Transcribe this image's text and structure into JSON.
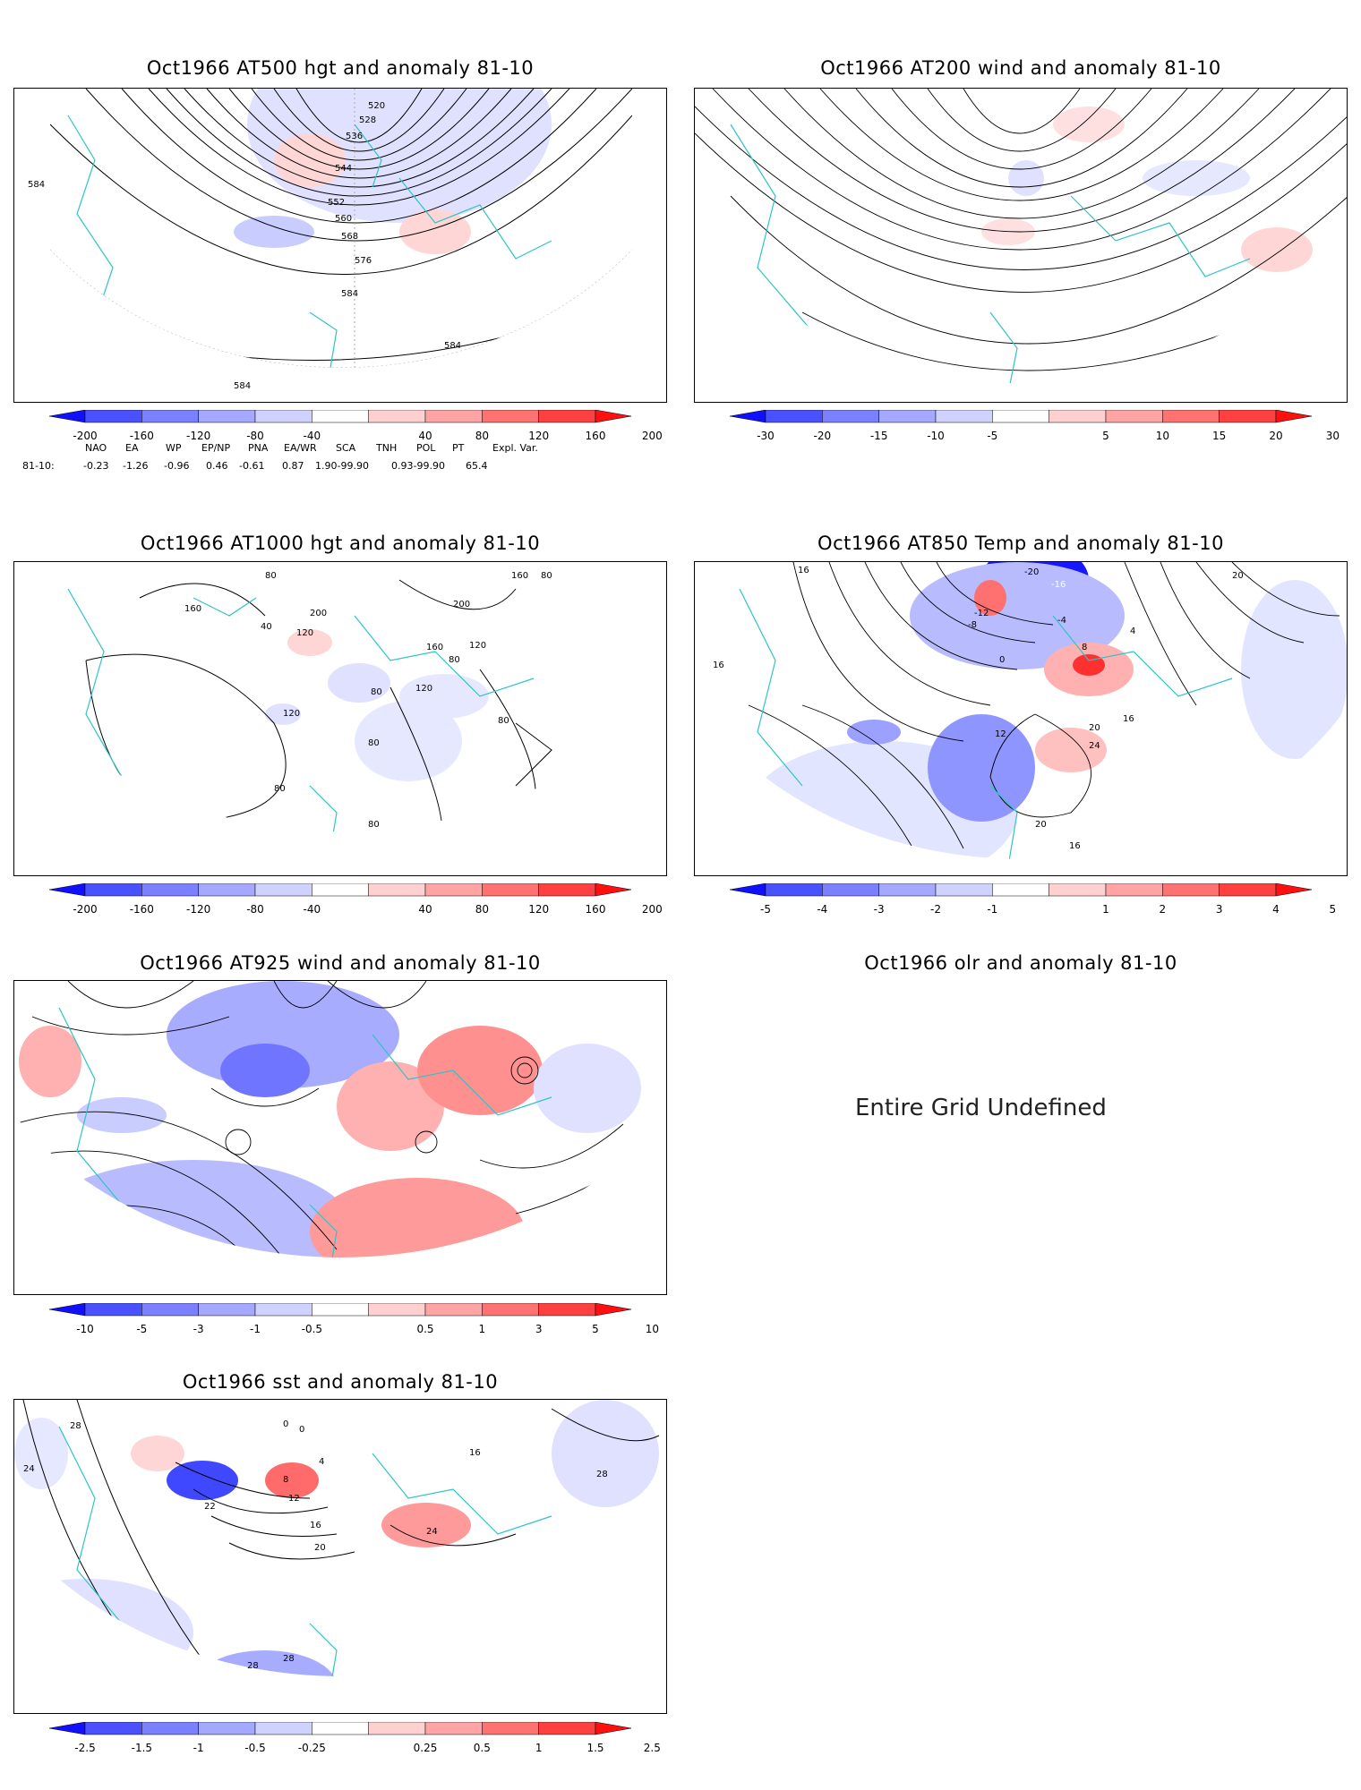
{
  "panels": [
    {
      "id": "p1",
      "title": "Oct1966 AT500 hgt and anomaly 81-10",
      "contours": [
        "520",
        "528",
        "536",
        "544",
        "552",
        "560",
        "568",
        "576",
        "584",
        "584",
        "584",
        "584"
      ],
      "colorbar": [
        "-200",
        "-160",
        "-120",
        "-80",
        "-40",
        "40",
        "80",
        "120",
        "160",
        "200"
      ]
    },
    {
      "id": "p2",
      "title": "Oct1966 AT200 wind and anomaly 81-10",
      "colorbar": [
        "-30",
        "-20",
        "-15",
        "-10",
        "-5",
        "5",
        "10",
        "15",
        "20",
        "30"
      ]
    },
    {
      "id": "p3",
      "title": "Oct1966 AT1000 hgt and anomaly 81-10",
      "contours": [
        "80",
        "160",
        "40",
        "120",
        "200",
        "200",
        "160",
        "80",
        "120",
        "160",
        "80",
        "80",
        "120",
        "80",
        "120",
        "80",
        "80",
        "80"
      ],
      "colorbar": [
        "-200",
        "-160",
        "-120",
        "-80",
        "-40",
        "40",
        "80",
        "120",
        "160",
        "200"
      ]
    },
    {
      "id": "p4",
      "title": "Oct1966 AT850 Temp and anomaly 81-10",
      "contours": [
        "16",
        "-20",
        "-16",
        "-12",
        "-8",
        "-4",
        "0",
        "4",
        "8",
        "12",
        "16",
        "20",
        "24",
        "20",
        "16",
        "16",
        "20"
      ],
      "colorbar": [
        "-5",
        "-4",
        "-3",
        "-2",
        "-1",
        "1",
        "2",
        "3",
        "4",
        "5"
      ]
    },
    {
      "id": "p5",
      "title": "Oct1966 AT925 wind and anomaly 81-10",
      "colorbar": [
        "-10",
        "-5",
        "-3",
        "-1",
        "-0.5",
        "0.5",
        "1",
        "3",
        "5",
        "10"
      ]
    },
    {
      "id": "p6",
      "title": "Oct1966 olr and anomaly 81-10",
      "message": "Entire Grid Undefined"
    },
    {
      "id": "p7",
      "title": "Oct1966 sst and anomaly 81-10",
      "contours": [
        "28",
        "24",
        "0",
        "0",
        "4",
        "8",
        "12",
        "16",
        "20",
        "22",
        "28",
        "16",
        "24",
        "28",
        "28"
      ],
      "colorbar": [
        "-2.5",
        "-1.5",
        "-1",
        "-0.5",
        "-0.25",
        "0.25",
        "0.5",
        "1",
        "1.5",
        "2.5"
      ]
    }
  ],
  "teleconnections": {
    "headers": [
      "NAO",
      "EA",
      "WP",
      "EP/NP",
      "PNA",
      "EA/WR",
      "SCA",
      "TNH",
      "POL",
      "PT",
      "Expl. Var."
    ],
    "row_label": "81-10:",
    "values": [
      "-0.23",
      "-1.26",
      "-0.96",
      "0.46",
      "-0.61",
      "0.87",
      "1.90-99.90",
      "0.93-99.90",
      "65.4"
    ]
  },
  "colors": {
    "coast": "#2ec4c4",
    "neg_strong": "#2020ff",
    "neg_weak": "#dde0ff",
    "pos_weak": "#ffe0e0",
    "pos_strong": "#ff2020",
    "contour": "#000000"
  }
}
